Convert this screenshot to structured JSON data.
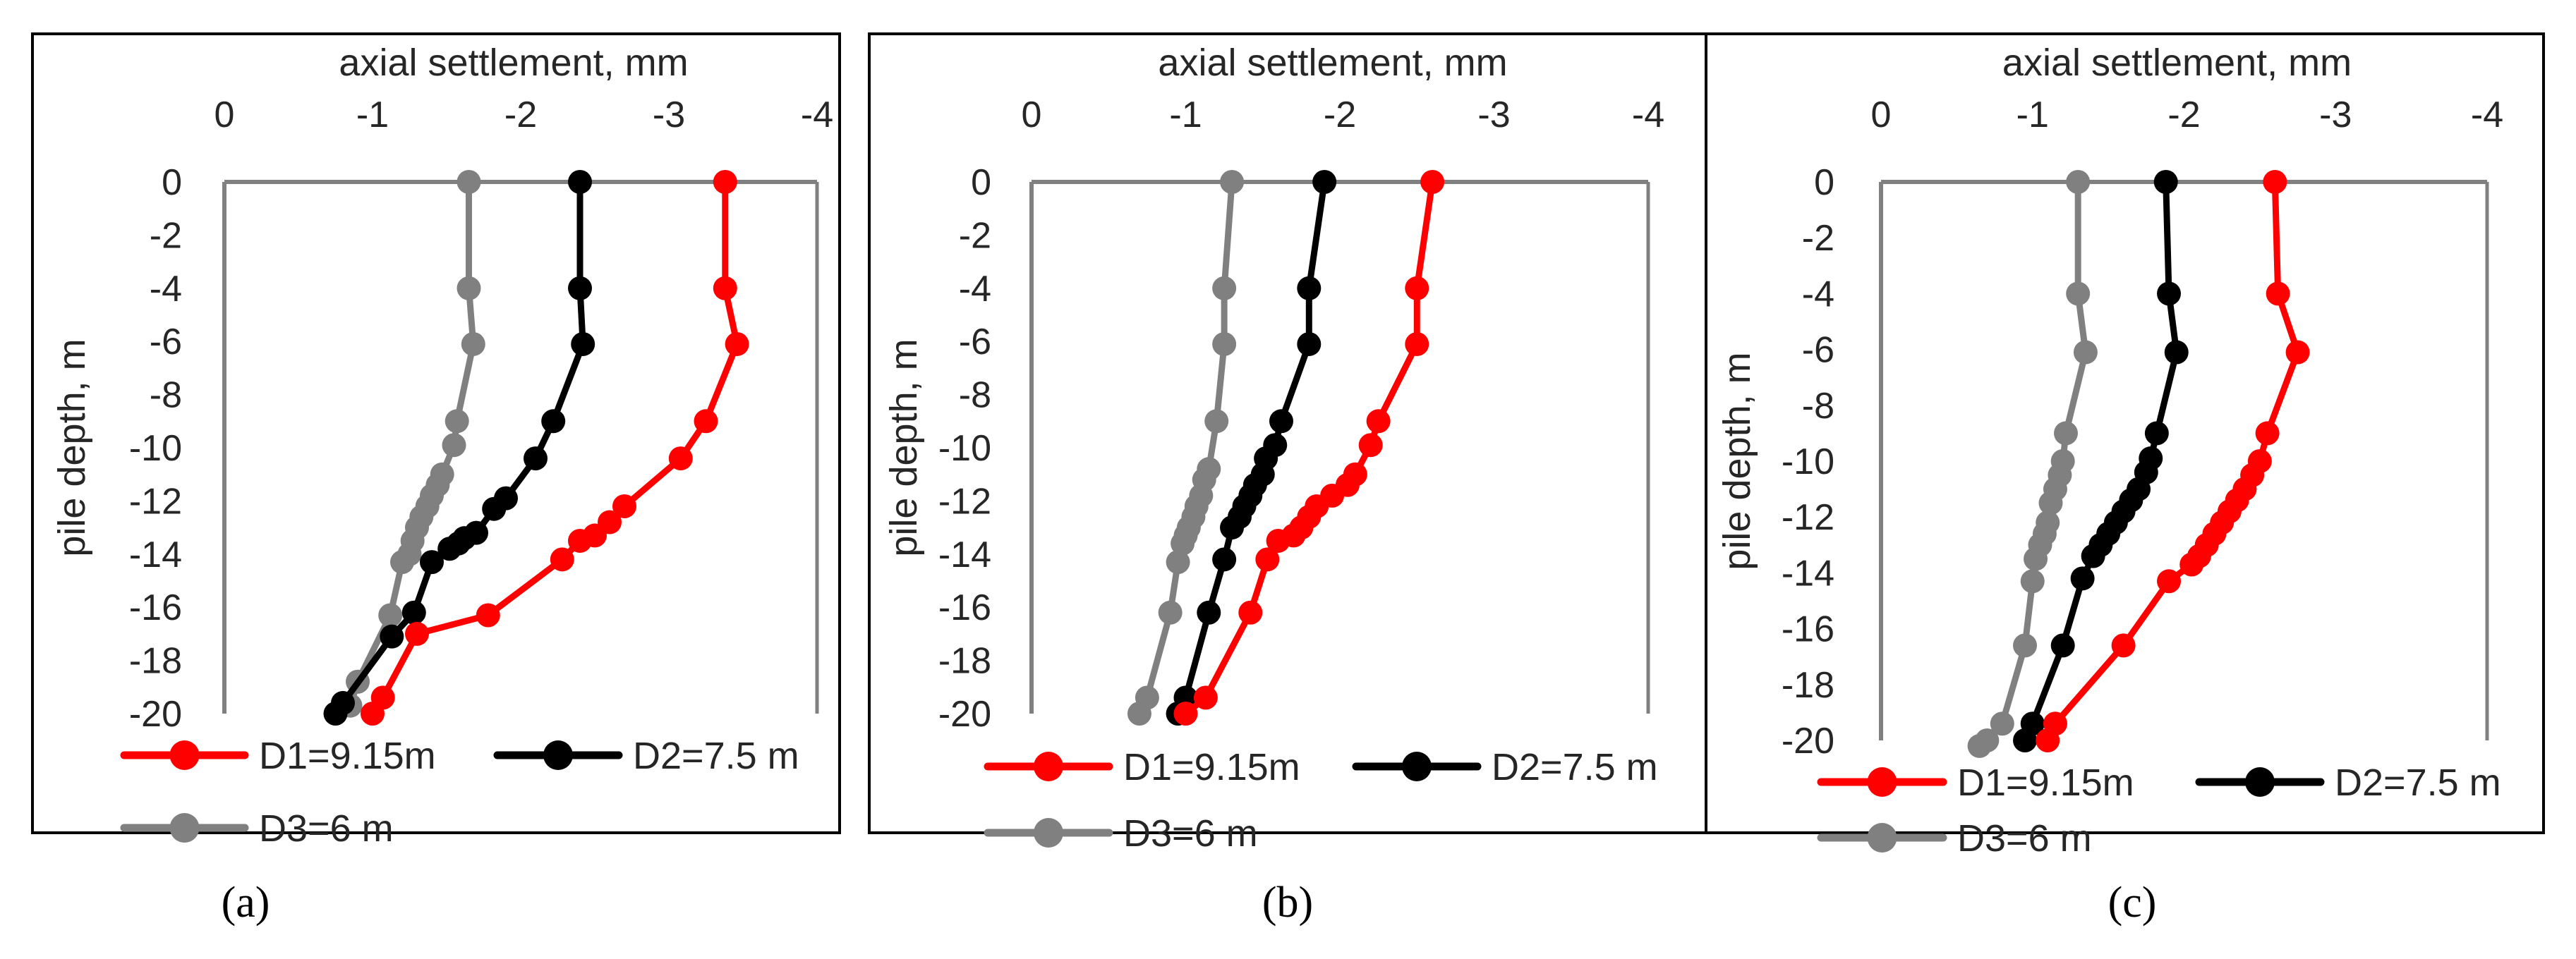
{
  "chart_data": [
    {
      "type": "line",
      "panel_label": "a",
      "xlabel": "axial settlement, mm",
      "ylabel": "pile depth, m",
      "xlim": [
        0,
        -4
      ],
      "ylim": [
        0,
        -20
      ],
      "x_ticks": [
        "0",
        "-1",
        "-2",
        "-3",
        "-4"
      ],
      "y_ticks": [
        "0",
        "-2",
        "-4",
        "-6",
        "-8",
        "-10",
        "-12",
        "-14",
        "-16",
        "-18",
        "-20"
      ],
      "series": [
        {
          "name": "D1=9.15m",
          "color": "#ff0000",
          "settlement": [
            -3.38,
            -3.38,
            -3.46,
            -3.25,
            -3.08,
            -2.7,
            -2.6,
            -2.5,
            -2.4,
            -2.28,
            -1.78,
            -1.3,
            -1.07,
            -1.0
          ],
          "depth": [
            0,
            -4,
            -6.1,
            -9,
            -10.4,
            -12.2,
            -12.8,
            -13.3,
            -13.5,
            -14.2,
            -16.3,
            -17,
            -19.4,
            -20
          ]
        },
        {
          "name": "D2=7.5 m",
          "color": "#000000",
          "settlement": [
            -2.4,
            -2.4,
            -2.42,
            -2.22,
            -2.1,
            -1.9,
            -1.82,
            -1.7,
            -1.62,
            -1.58,
            -1.52,
            -1.4,
            -1.28,
            -1.13,
            -0.8,
            -0.75
          ],
          "depth": [
            0,
            -4,
            -6.1,
            -9,
            -10.4,
            -11.9,
            -12.3,
            -13.2,
            -13.4,
            -13.6,
            -13.8,
            -14.3,
            -16.2,
            -17.1,
            -19.6,
            -20
          ]
        },
        {
          "name": "D3=6 m",
          "color": "#808080",
          "settlement": [
            -1.65,
            -1.65,
            -1.68,
            -1.57,
            -1.55,
            -1.47,
            -1.44,
            -1.4,
            -1.37,
            -1.33,
            -1.3,
            -1.27,
            -1.25,
            -1.2,
            -1.12,
            -0.9,
            -0.85
          ],
          "depth": [
            0,
            -4,
            -6.1,
            -9,
            -9.9,
            -11,
            -11.4,
            -11.8,
            -12.2,
            -12.6,
            -13,
            -13.5,
            -14,
            -14.3,
            -16.3,
            -18.8,
            -19.7
          ]
        }
      ]
    },
    {
      "type": "line",
      "panel_label": "b",
      "xlabel": "axial settlement, mm",
      "ylabel": "pile depth, m",
      "xlim": [
        0,
        -4
      ],
      "ylim": [
        0,
        -20
      ],
      "x_ticks": [
        "0",
        "-1",
        "-2",
        "-3",
        "-4"
      ],
      "y_ticks": [
        "0",
        "-2",
        "-4",
        "-6",
        "-8",
        "-10",
        "-12",
        "-14",
        "-16",
        "-18",
        "-20"
      ],
      "series": [
        {
          "name": "D1=9.15m",
          "color": "#ff0000",
          "settlement": [
            -2.6,
            -2.5,
            -2.5,
            -2.25,
            -2.2,
            -2.1,
            -2.05,
            -1.95,
            -1.85,
            -1.8,
            -1.75,
            -1.7,
            -1.6,
            -1.53,
            -1.42,
            -1.13,
            -1.0
          ],
          "depth": [
            0,
            -4,
            -6.1,
            -9,
            -9.9,
            -11,
            -11.4,
            -11.8,
            -12.2,
            -12.6,
            -13,
            -13.3,
            -13.5,
            -14.2,
            -16.2,
            -19.4,
            -20
          ]
        },
        {
          "name": "D2=7.5 m",
          "color": "#000000",
          "settlement": [
            -1.9,
            -1.8,
            -1.8,
            -1.62,
            -1.58,
            -1.52,
            -1.5,
            -1.45,
            -1.42,
            -1.38,
            -1.35,
            -1.3,
            -1.25,
            -1.15,
            -1.0,
            -0.95
          ],
          "depth": [
            0,
            -4,
            -6.1,
            -9,
            -9.9,
            -10.4,
            -11,
            -11.4,
            -11.8,
            -12.2,
            -12.6,
            -13,
            -14.2,
            -16.2,
            -19.4,
            -20
          ]
        },
        {
          "name": "D3=6 m",
          "color": "#808080",
          "settlement": [
            -1.3,
            -1.25,
            -1.25,
            -1.2,
            -1.15,
            -1.12,
            -1.1,
            -1.07,
            -1.05,
            -1.02,
            -1.0,
            -0.98,
            -0.95,
            -0.9,
            -0.75,
            -0.7
          ],
          "depth": [
            0,
            -4,
            -6.1,
            -9,
            -10.8,
            -11.2,
            -11.8,
            -12.2,
            -12.6,
            -13,
            -13.3,
            -13.6,
            -14.3,
            -16.2,
            -19.4,
            -20
          ]
        }
      ]
    },
    {
      "type": "line",
      "panel_label": "c",
      "xlabel": "axial settlement, mm",
      "ylabel": "pile depth, m",
      "xlim": [
        0,
        -4
      ],
      "ylim": [
        0,
        -20
      ],
      "x_ticks": [
        "0",
        "-1",
        "-2",
        "-3",
        "-4"
      ],
      "y_ticks": [
        "0",
        "-2",
        "-4",
        "-6",
        "-8",
        "-10",
        "-12",
        "-14",
        "-16",
        "-18",
        "-20"
      ],
      "series": [
        {
          "name": "D1=9.15m",
          "color": "#ff0000",
          "settlement": [
            -2.6,
            -2.62,
            -2.75,
            -2.55,
            -2.5,
            -2.45,
            -2.4,
            -2.35,
            -2.3,
            -2.25,
            -2.2,
            -2.15,
            -2.1,
            -2.05,
            -1.9,
            -1.6,
            -1.15,
            -1.1
          ],
          "depth": [
            0,
            -4,
            -6.1,
            -9,
            -10,
            -10.5,
            -11,
            -11.4,
            -11.8,
            -12.2,
            -12.6,
            -13,
            -13.4,
            -13.7,
            -14.3,
            -16.6,
            -19.4,
            -20
          ]
        },
        {
          "name": "D2=7.5 m",
          "color": "#000000",
          "settlement": [
            -1.88,
            -1.9,
            -1.95,
            -1.82,
            -1.78,
            -1.75,
            -1.7,
            -1.65,
            -1.6,
            -1.55,
            -1.5,
            -1.45,
            -1.4,
            -1.33,
            -1.2,
            -1.0,
            -0.95
          ],
          "depth": [
            0,
            -4,
            -6.1,
            -9,
            -9.9,
            -10.4,
            -11,
            -11.4,
            -11.8,
            -12.2,
            -12.6,
            -13,
            -13.4,
            -14.2,
            -16.6,
            -19.4,
            -20
          ]
        },
        {
          "name": "D3=6 m",
          "color": "#808080",
          "settlement": [
            -1.3,
            -1.3,
            -1.35,
            -1.22,
            -1.2,
            -1.18,
            -1.15,
            -1.12,
            -1.1,
            -1.08,
            -1.05,
            -1.02,
            -1.0,
            -0.95,
            -0.8,
            -0.7,
            -0.65
          ],
          "depth": [
            0,
            -4,
            -6.1,
            -9,
            -10,
            -10.5,
            -11,
            -11.5,
            -12.2,
            -12.6,
            -13,
            -13.5,
            -14.3,
            -16.6,
            -19.4,
            -20,
            -20.2
          ]
        }
      ]
    }
  ],
  "captions": [
    "(a)",
    "(b)",
    "(c)"
  ]
}
